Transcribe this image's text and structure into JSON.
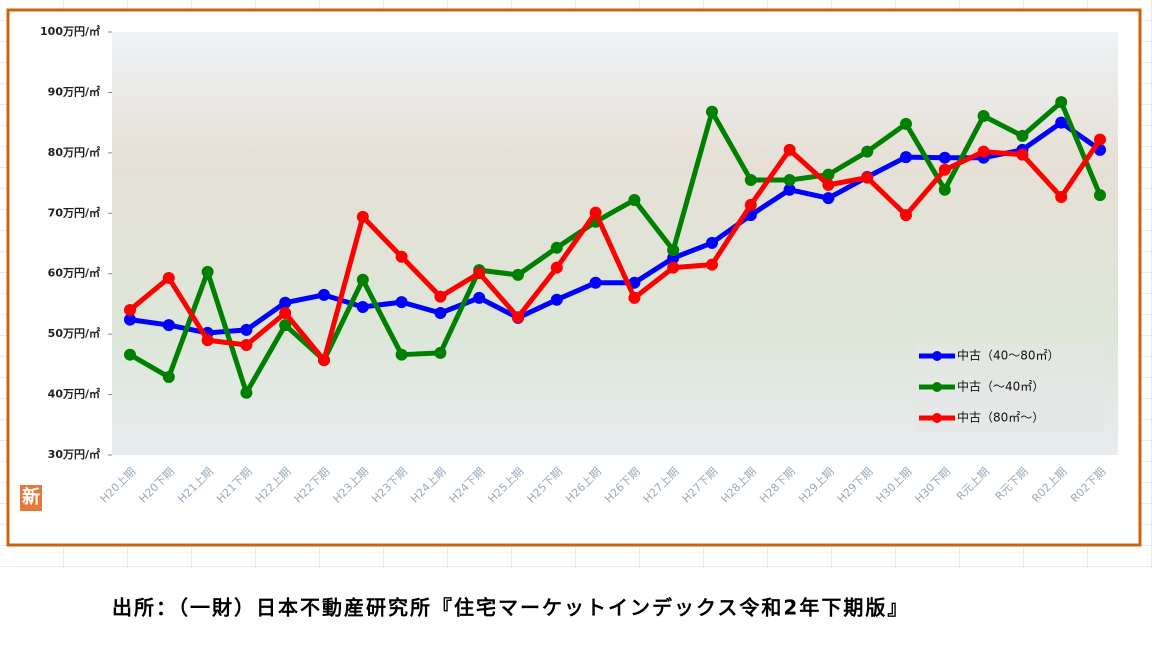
{
  "chart_data": {
    "type": "line",
    "badge": "新",
    "source": "出所：（一財）日本不動産研究所『住宅マーケットインデックス令和2年下期版』",
    "categories": [
      "H20上期",
      "H20下期",
      "H21上期",
      "H21下期",
      "H22上期",
      "H22下期",
      "H23上期",
      "H23下期",
      "H24上期",
      "H24下期",
      "H25上期",
      "H25下期",
      "H26上期",
      "H26下期",
      "H27上期",
      "H27下期",
      "H28上期",
      "H28下期",
      "H29上期",
      "H29下期",
      "H30上期",
      "H30下期",
      "R元上期",
      "R元下期",
      "R02上期",
      "R02下期"
    ],
    "ylim": [
      30,
      100
    ],
    "yticks": [
      {
        "value": 30,
        "label": "30万円/㎡"
      },
      {
        "value": 40,
        "label": "40万円/㎡"
      },
      {
        "value": 50,
        "label": "50万円/㎡"
      },
      {
        "value": 60,
        "label": "60万円/㎡"
      },
      {
        "value": 70,
        "label": "70万円/㎡"
      },
      {
        "value": 80,
        "label": "80万円/㎡"
      },
      {
        "value": 90,
        "label": "90万円/㎡"
      },
      {
        "value": 100,
        "label": "100万円/㎡"
      }
    ],
    "legend": "lower right",
    "series": [
      {
        "name": "中古（40～80㎡）",
        "color": "#0000ff",
        "values": [
          52.4,
          51.5,
          50.2,
          50.7,
          55.2,
          56.5,
          54.5,
          55.3,
          53.5,
          56.0,
          52.7,
          55.7,
          58.5,
          58.5,
          62.6,
          65.1,
          69.7,
          73.9,
          72.5,
          76.0,
          79.3,
          79.2,
          79.2,
          80.5,
          85.0,
          80.5
        ]
      },
      {
        "name": "中古（～40㎡）",
        "color": "#008000",
        "values": [
          46.6,
          42.9,
          60.3,
          40.3,
          51.5,
          45.7,
          59.0,
          46.6,
          46.9,
          60.6,
          59.8,
          64.3,
          68.6,
          72.2,
          63.9,
          86.8,
          75.5,
          75.5,
          76.4,
          80.2,
          84.8,
          73.9,
          86.1,
          82.8,
          88.4,
          73.0
        ]
      },
      {
        "name": "中古（80㎡～）",
        "color": "#ff0000",
        "values": [
          54.0,
          59.3,
          49.0,
          48.2,
          53.5,
          45.7,
          69.4,
          62.8,
          56.2,
          60.1,
          52.8,
          61.0,
          70.1,
          56.0,
          61.0,
          61.5,
          71.4,
          80.5,
          74.7,
          75.9,
          69.7,
          77.2,
          80.2,
          79.7,
          72.7,
          82.2
        ]
      }
    ]
  }
}
